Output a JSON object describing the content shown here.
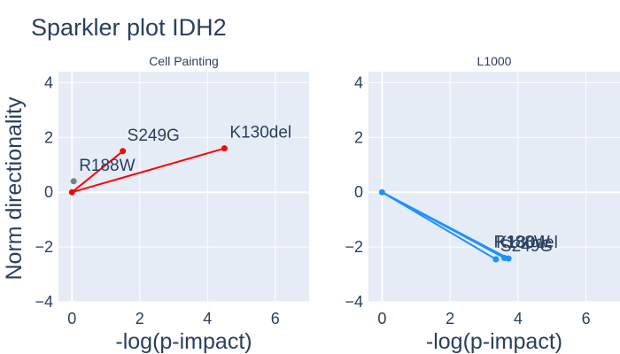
{
  "page": {
    "title": "Sparkler plot IDH2",
    "y_axis_label": "Norm directionality"
  },
  "chart_data": [
    {
      "type": "scatter",
      "title": "Cell Painting",
      "xlabel": "-log(p-impact)",
      "ylabel": "Norm directionality",
      "xlim": [
        -0.4,
        7
      ],
      "ylim": [
        -4,
        4.4
      ],
      "x_ticks": [
        0,
        2,
        4,
        6
      ],
      "y_ticks": [
        -4,
        -2,
        0,
        2,
        4
      ],
      "origin": {
        "x": 0,
        "y": 0
      },
      "line_color": "#ff0000",
      "grid": true,
      "points": [
        {
          "label": "R188W",
          "x": 0.05,
          "y": 0.4,
          "color": "#708090",
          "segment": false
        },
        {
          "label": "S249G",
          "x": 1.5,
          "y": 1.5,
          "color": "#ff0000",
          "segment": true
        },
        {
          "label": "K130del",
          "x": 4.5,
          "y": 1.6,
          "color": "#ff0000",
          "segment": true
        }
      ]
    },
    {
      "type": "scatter",
      "title": "L1000",
      "xlabel": "-log(p-impact)",
      "ylabel": "",
      "xlim": [
        -0.4,
        7
      ],
      "ylim": [
        -4,
        4.4
      ],
      "x_ticks": [
        0,
        2,
        4,
        6
      ],
      "y_ticks": [
        -4,
        -2,
        0,
        2,
        4
      ],
      "origin": {
        "x": 0,
        "y": 0
      },
      "line_color": "#1e90ff",
      "grid": true,
      "points": [
        {
          "label": "S249G",
          "x": 3.35,
          "y": -2.45,
          "color": "#1e90ff",
          "segment": true
        },
        {
          "label": "R188W",
          "x": 3.6,
          "y": -2.4,
          "color": "#1e90ff",
          "segment": true
        },
        {
          "label": "K130del",
          "x": 3.72,
          "y": -2.42,
          "color": "#1e90ff",
          "segment": true
        }
      ]
    }
  ]
}
